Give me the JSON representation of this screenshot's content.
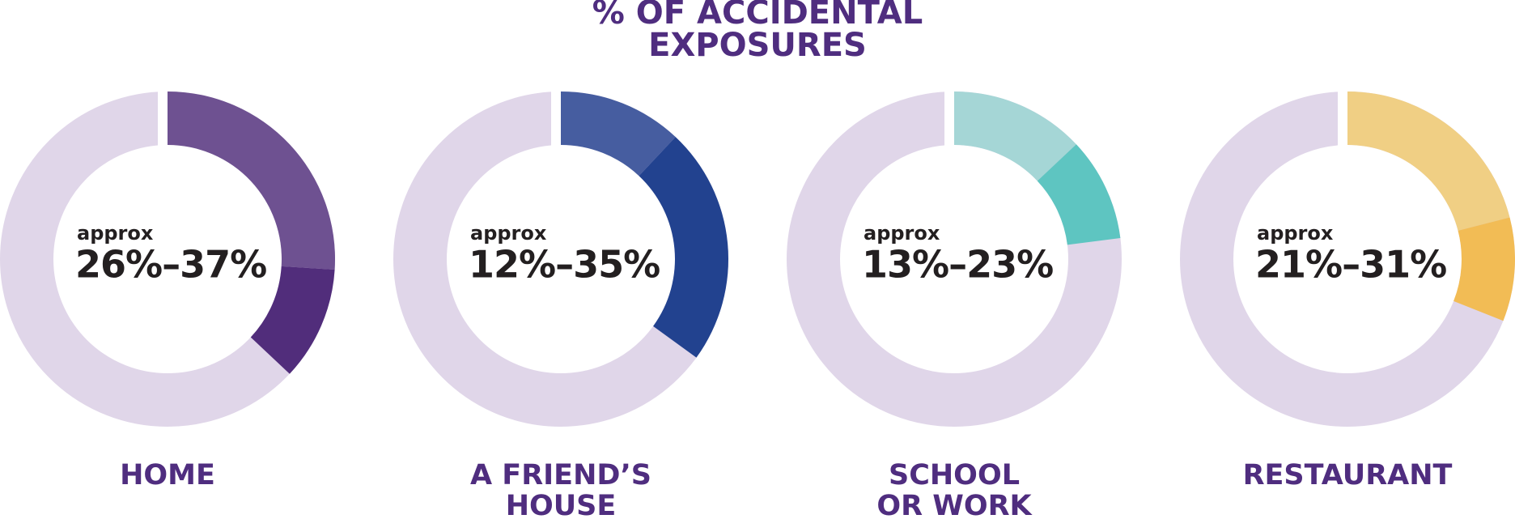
{
  "chart_data": {
    "type": "range-donut",
    "title": [
      "% OF ACCIDENTAL",
      "EXPOSURES"
    ],
    "track_color": "#e0d6e9",
    "items": [
      {
        "label": [
          "HOME"
        ],
        "prefix": "approx",
        "range_label": "26%–37%",
        "low": 26,
        "high": 37,
        "colors": [
          "#6e5191",
          "#512d7b"
        ]
      },
      {
        "label": [
          "A FRIEND’S",
          "HOUSE"
        ],
        "prefix": "approx",
        "range_label": "12%–35%",
        "low": 12,
        "high": 35,
        "colors": [
          "#465da0",
          "#22428f"
        ]
      },
      {
        "label": [
          "SCHOOL",
          "OR WORK"
        ],
        "prefix": "approx",
        "range_label": "13%–23%",
        "low": 13,
        "high": 23,
        "colors": [
          "#a5d6d6",
          "#5ec5c1"
        ]
      },
      {
        "label": [
          "RESTAURANT"
        ],
        "prefix": "approx",
        "range_label": "21%–31%",
        "low": 21,
        "high": 31,
        "colors": [
          "#f0cf84",
          "#f2bc55"
        ]
      }
    ]
  }
}
